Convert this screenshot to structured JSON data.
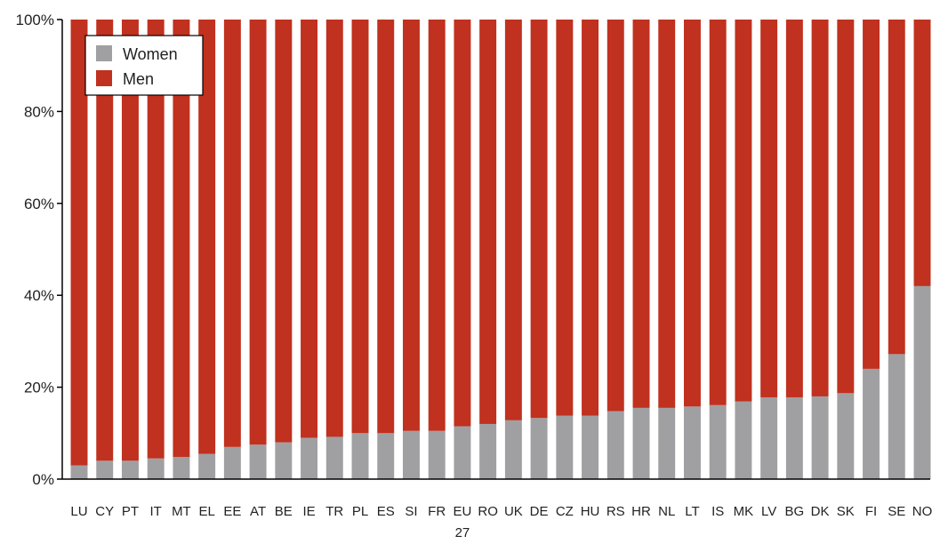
{
  "colors": {
    "women": "#a0a0a2",
    "men": "#c0311f",
    "axis": "#000000"
  },
  "legend": {
    "placement": "top-left",
    "items": [
      {
        "label": "Women",
        "color": "#a0a0a2"
      },
      {
        "label": "Men",
        "color": "#c0311f"
      }
    ]
  },
  "chart_data": {
    "type": "bar",
    "stacked": true,
    "title": "",
    "xlabel": "",
    "ylabel": "",
    "ylim": [
      0,
      100
    ],
    "yticks": [
      "0%",
      "20%",
      "40%",
      "60%",
      "80%",
      "100%"
    ],
    "categories": [
      "LU",
      "CY",
      "PT",
      "IT",
      "MT",
      "EL",
      "EE",
      "AT",
      "BE",
      "IE",
      "TR",
      "PL",
      "ES",
      "SI",
      "FR",
      "EU 27",
      "RO",
      "UK",
      "DE",
      "CZ",
      "HU",
      "RS",
      "HR",
      "NL",
      "LT",
      "IS",
      "MK",
      "LV",
      "BG",
      "DK",
      "SK",
      "FI",
      "SE",
      "NO"
    ],
    "series": [
      {
        "name": "Women",
        "values": [
          3,
          4,
          4,
          4.5,
          4.8,
          5.5,
          7,
          7.5,
          8,
          9,
          9.2,
          10,
          10,
          10.5,
          10.5,
          11.5,
          12,
          12.8,
          13.3,
          13.8,
          13.8,
          14.8,
          15.5,
          15.5,
          15.8,
          16.1,
          16.9,
          17.8,
          17.8,
          18,
          18.7,
          24,
          27.2,
          42
        ]
      },
      {
        "name": "Men",
        "values": [
          97,
          96,
          96,
          95.5,
          95.2,
          94.5,
          93,
          92.5,
          92,
          91,
          90.8,
          90,
          90,
          89.5,
          89.5,
          88.5,
          88,
          87.2,
          86.7,
          86.2,
          86.2,
          85.2,
          84.5,
          84.5,
          84.2,
          83.9,
          83.1,
          82.2,
          82.2,
          82,
          81.3,
          76,
          72.8,
          58
        ]
      }
    ]
  }
}
